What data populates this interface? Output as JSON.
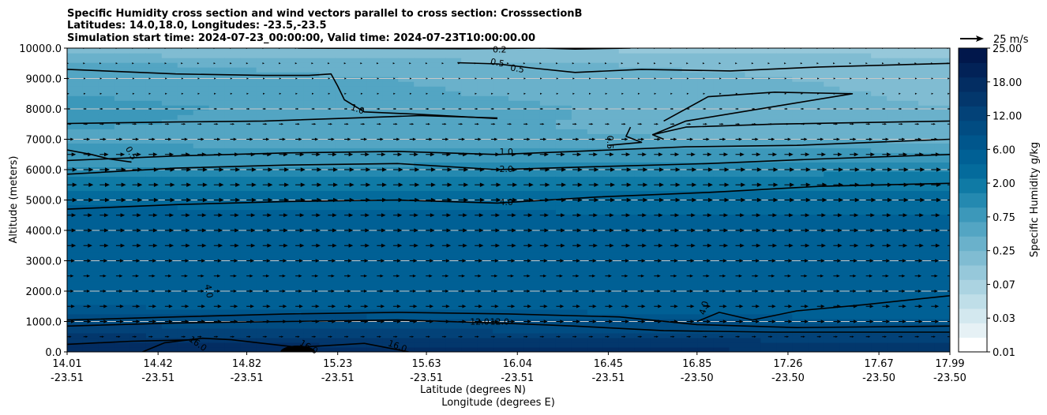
{
  "chart_data": {
    "type": "heatmap",
    "subtype": "vertical cross section (filled contours + wind vectors)",
    "title_lines": [
      "Specific Humidity cross section and wind vectors parallel to cross section: CrosssectionB",
      "Latitudes: 14.0,18.0, Longitudes: -23.5,-23.5",
      "Simulation start time: 2024-07-23_00:00:00, Valid time: 2024-07-23T10:00:00.00"
    ],
    "ylabel": "Altitude (meters)",
    "xlabel_lat": "Latitude (degrees N)",
    "xlabel_lon": "Longitude (degrees E)",
    "ylim": [
      0,
      10000
    ],
    "xlim": [
      14.01,
      17.99
    ],
    "y_ticks": [
      {
        "value": 0,
        "label": "0.0"
      },
      {
        "value": 1000,
        "label": "1000.0"
      },
      {
        "value": 2000,
        "label": "2000.0"
      },
      {
        "value": 3000,
        "label": "3000.0"
      },
      {
        "value": 4000,
        "label": "4000.0"
      },
      {
        "value": 5000,
        "label": "5000.0"
      },
      {
        "value": 6000,
        "label": "6000.0"
      },
      {
        "value": 7000,
        "label": "7000.0"
      },
      {
        "value": 8000,
        "label": "8000.0"
      },
      {
        "value": 9000,
        "label": "9000.0"
      },
      {
        "value": 10000,
        "label": "10000.0"
      }
    ],
    "x_ticks": [
      {
        "value": 14.01,
        "lat": "14.01",
        "lon": "-23.51"
      },
      {
        "value": 14.42,
        "lat": "14.42",
        "lon": "-23.51"
      },
      {
        "value": 14.82,
        "lat": "14.82",
        "lon": "-23.51"
      },
      {
        "value": 15.23,
        "lat": "15.23",
        "lon": "-23.51"
      },
      {
        "value": 15.63,
        "lat": "15.63",
        "lon": "-23.51"
      },
      {
        "value": 16.04,
        "lat": "16.04",
        "lon": "-23.51"
      },
      {
        "value": 16.45,
        "lat": "16.45",
        "lon": "-23.51"
      },
      {
        "value": 16.85,
        "lat": "16.85",
        "lon": "-23.50"
      },
      {
        "value": 17.26,
        "lat": "17.26",
        "lon": "-23.50"
      },
      {
        "value": 17.67,
        "lat": "17.67",
        "lon": "-23.50"
      },
      {
        "value": 17.99,
        "lat": "17.99",
        "lon": "-23.50"
      }
    ],
    "colorbar": {
      "label": "Specific Humidity g/kg",
      "levels": [
        0.01,
        0.02,
        0.03,
        0.05,
        0.07,
        0.1,
        0.25,
        0.5,
        0.75,
        1.0,
        1.5,
        2.0,
        3.0,
        4.0,
        6.0,
        8.0,
        12.0,
        14.0,
        16.0,
        18.0,
        20.0,
        25.0
      ],
      "tick_labels": [
        "0.01",
        "0.03",
        "0.07",
        "0.25",
        "0.75",
        "2.00",
        "6.00",
        "12.00",
        "18.00",
        "25.00"
      ],
      "colors": [
        "#ffffff",
        "#e6f1f5",
        "#d3e8ef",
        "#bfdee8",
        "#abd3e1",
        "#96c8da",
        "#80bcd2",
        "#6ab1cb",
        "#53a5c3",
        "#3c98ba",
        "#2489b0",
        "#0f7aa5",
        "#046b9c",
        "#006095",
        "#00568c",
        "#014c82",
        "#034278",
        "#03376c",
        "#032d62",
        "#022257",
        "#01174b"
      ]
    },
    "quiver_key": {
      "magnitude": 25,
      "label": "25 m/s"
    },
    "humidity_profile": {
      "altitude_m": [
        0,
        300,
        500,
        800,
        1000,
        1200,
        1500,
        2000,
        3000,
        4000,
        4500,
        5000,
        5500,
        6000,
        6500,
        7000,
        7500,
        8000,
        8500,
        9000,
        9500,
        10000
      ],
      "west_gkg": [
        17.5,
        16.2,
        14.5,
        12.5,
        12.0,
        9.0,
        6.0,
        5.5,
        5.0,
        4.5,
        4.2,
        3.9,
        2.5,
        1.6,
        1.2,
        0.9,
        1.05,
        1.1,
        1.0,
        0.95,
        0.8,
        0.3
      ],
      "east_gkg": [
        16.0,
        14.5,
        12.5,
        10.0,
        7.0,
        5.0,
        4.5,
        4.4,
        4.3,
        4.1,
        4.0,
        3.5,
        2.6,
        1.8,
        1.1,
        0.7,
        0.5,
        0.5,
        0.45,
        0.4,
        0.3,
        0.15
      ]
    },
    "contours": [
      {
        "level": 0.2,
        "label": "0.2",
        "points": [
          [
            15.05,
            10000
          ],
          [
            15.8,
            9980
          ],
          [
            16.15,
            10000
          ],
          [
            16.3,
            9970
          ],
          [
            16.55,
            10000
          ]
        ]
      },
      {
        "level": 0.5,
        "label": "0.5",
        "points": [
          [
            15.77,
            9520
          ],
          [
            15.95,
            9480
          ],
          [
            16.1,
            9350
          ],
          [
            16.3,
            9200
          ],
          [
            16.6,
            9300
          ],
          [
            17.0,
            9250
          ],
          [
            17.4,
            9380
          ],
          [
            17.99,
            9500
          ]
        ]
      },
      {
        "level": 0.5,
        "label": "0.5",
        "points": [
          [
            16.55,
            7400
          ],
          [
            16.53,
            7100
          ],
          [
            16.6,
            6900
          ],
          [
            16.45,
            6800
          ]
        ]
      },
      {
        "level": 0.5,
        "label": "0.5",
        "points": [
          [
            14.01,
            6650
          ],
          [
            14.12,
            6500
          ],
          [
            14.2,
            6350
          ],
          [
            14.3,
            6250
          ]
        ]
      },
      {
        "level": 0.5,
        "label": "0.5",
        "points": [
          [
            17.99,
            7600
          ],
          [
            17.2,
            7500
          ],
          [
            16.8,
            7400
          ],
          [
            16.65,
            7150
          ],
          [
            16.7,
            7000
          ]
        ]
      },
      {
        "level": 0.5,
        "label": "0.5",
        "points": [
          [
            16.65,
            7150
          ],
          [
            16.8,
            7600
          ],
          [
            17.3,
            8200
          ],
          [
            17.55,
            8500
          ],
          [
            17.2,
            8550
          ],
          [
            16.9,
            8400
          ],
          [
            16.7,
            7600
          ]
        ]
      },
      {
        "level": 1.0,
        "label": "1.0",
        "points": [
          [
            14.01,
            9300
          ],
          [
            14.5,
            9150
          ],
          [
            14.9,
            9100
          ],
          [
            15.1,
            9100
          ],
          [
            15.2,
            9150
          ],
          [
            15.23,
            8750
          ],
          [
            15.26,
            8300
          ],
          [
            15.35,
            7900
          ],
          [
            15.6,
            7820
          ],
          [
            15.95,
            7680
          ]
        ]
      },
      {
        "level": 1.0,
        "label": "1.0",
        "points": [
          [
            14.01,
            7520
          ],
          [
            14.5,
            7570
          ],
          [
            14.9,
            7600
          ],
          [
            15.3,
            7700
          ],
          [
            15.6,
            7780
          ],
          [
            15.95,
            7700
          ]
        ]
      },
      {
        "level": 1.0,
        "label": "1.0",
        "points": [
          [
            14.01,
            6300
          ],
          [
            14.5,
            6450
          ],
          [
            15.0,
            6550
          ],
          [
            15.5,
            6600
          ],
          [
            15.95,
            6500
          ],
          [
            16.3,
            6600
          ],
          [
            16.8,
            6750
          ],
          [
            17.3,
            6800
          ],
          [
            17.99,
            7000
          ]
        ]
      },
      {
        "level": 2.0,
        "label": "2.0",
        "points": [
          [
            14.01,
            5850
          ],
          [
            14.5,
            6050
          ],
          [
            15.0,
            6150
          ],
          [
            15.5,
            6200
          ],
          [
            15.95,
            6000
          ],
          [
            16.4,
            6100
          ],
          [
            16.9,
            6200
          ],
          [
            17.4,
            6350
          ],
          [
            17.99,
            6500
          ]
        ]
      },
      {
        "level": 4.0,
        "label": "4.0",
        "points": [
          [
            14.01,
            4700
          ],
          [
            14.5,
            4850
          ],
          [
            15.0,
            4950
          ],
          [
            15.5,
            5000
          ],
          [
            15.95,
            4900
          ],
          [
            16.4,
            5100
          ],
          [
            16.9,
            5250
          ],
          [
            17.4,
            5450
          ],
          [
            17.99,
            5550
          ]
        ]
      },
      {
        "level": 4.0,
        "label": "4.0",
        "points": [
          [
            16.85,
            1000
          ],
          [
            16.95,
            1300
          ],
          [
            17.1,
            1050
          ],
          [
            17.3,
            1350
          ],
          [
            17.6,
            1550
          ],
          [
            17.99,
            1850
          ]
        ]
      },
      {
        "level": 12.0,
        "label": "12.0",
        "points": [
          [
            14.01,
            1050
          ],
          [
            14.5,
            1150
          ],
          [
            15.0,
            1250
          ],
          [
            15.5,
            1300
          ],
          [
            16.0,
            1250
          ],
          [
            16.5,
            1150
          ],
          [
            16.85,
            900
          ],
          [
            17.3,
            800
          ],
          [
            17.99,
            850
          ]
        ]
      },
      {
        "level": 12.0,
        "label": "12.0",
        "points": [
          [
            14.01,
            850
          ],
          [
            14.5,
            950
          ],
          [
            15.0,
            1000
          ],
          [
            15.5,
            1050
          ],
          [
            15.95,
            950
          ],
          [
            16.3,
            850
          ],
          [
            16.7,
            700
          ],
          [
            17.2,
            650
          ],
          [
            17.99,
            650
          ]
        ]
      },
      {
        "level": 16.0,
        "label": "16.0",
        "points": [
          [
            14.01,
            250
          ],
          [
            14.3,
            350
          ],
          [
            14.6,
            400
          ]
        ]
      },
      {
        "level": 16.0,
        "label": "16.0",
        "points": [
          [
            14.35,
            0
          ],
          [
            14.45,
            300
          ],
          [
            14.62,
            450
          ],
          [
            14.75,
            400
          ],
          [
            15.05,
            150
          ],
          [
            15.35,
            280
          ],
          [
            15.55,
            0
          ]
        ]
      }
    ],
    "contour_labels": [
      {
        "text": "0.2",
        "lat": 15.96,
        "alt": 9960,
        "angle": 0
      },
      {
        "text": "0.5",
        "lat": 15.95,
        "alt": 9530,
        "angle": 10
      },
      {
        "text": "0.5",
        "lat": 16.04,
        "alt": 9330,
        "angle": 10
      },
      {
        "text": "1.0",
        "lat": 15.32,
        "alt": 8000,
        "angle": 20
      },
      {
        "text": "0.5",
        "lat": 14.3,
        "alt": 6550,
        "angle": 60
      },
      {
        "text": "1.0",
        "lat": 15.99,
        "alt": 6600,
        "angle": 0
      },
      {
        "text": "0.5",
        "lat": 16.46,
        "alt": 6900,
        "angle": 90
      },
      {
        "text": "2.0",
        "lat": 15.99,
        "alt": 6030,
        "angle": 0
      },
      {
        "text": "4.0",
        "lat": 15.99,
        "alt": 4940,
        "angle": 0
      },
      {
        "text": "4.0",
        "lat": 14.65,
        "alt": 2000,
        "angle": 80
      },
      {
        "text": "4.0",
        "lat": 16.88,
        "alt": 1450,
        "angle": -75
      },
      {
        "text": "12.0",
        "lat": 15.87,
        "alt": 1000,
        "angle": 0
      },
      {
        "text": "12.0",
        "lat": 15.96,
        "alt": 1000,
        "angle": 0
      },
      {
        "text": "16.0",
        "lat": 14.6,
        "alt": 280,
        "angle": 35
      },
      {
        "text": "16.0",
        "lat": 15.1,
        "alt": 170,
        "angle": 30
      },
      {
        "text": "16.0",
        "lat": 15.5,
        "alt": 200,
        "angle": 20
      }
    ],
    "wind_vectors": {
      "lat_start": 14.01,
      "lat_step": 0.0735,
      "lat_count": 55,
      "altitudes_m": [
        500,
        1000,
        1500,
        2000,
        2500,
        3000,
        3500,
        4000,
        4500,
        5000,
        5500,
        6000,
        6500,
        7000,
        7500,
        8000,
        8500,
        9000,
        9500,
        10000
      ],
      "speed_profile_ms": [
        [
          0,
          2
        ],
        [
          500,
          4
        ],
        [
          1000,
          7
        ],
        [
          1500,
          7
        ],
        [
          2000,
          6
        ],
        [
          2500,
          6
        ],
        [
          3000,
          7
        ],
        [
          3500,
          8
        ],
        [
          4000,
          8
        ],
        [
          4500,
          8
        ],
        [
          5000,
          9
        ],
        [
          5500,
          9
        ],
        [
          6000,
          9
        ],
        [
          6500,
          8
        ],
        [
          7000,
          6
        ],
        [
          7500,
          4
        ],
        [
          8000,
          3
        ],
        [
          8500,
          2
        ],
        [
          9000,
          2
        ],
        [
          9500,
          1
        ],
        [
          10000,
          0.5
        ]
      ],
      "direction": "eastward (along cross section)"
    }
  }
}
